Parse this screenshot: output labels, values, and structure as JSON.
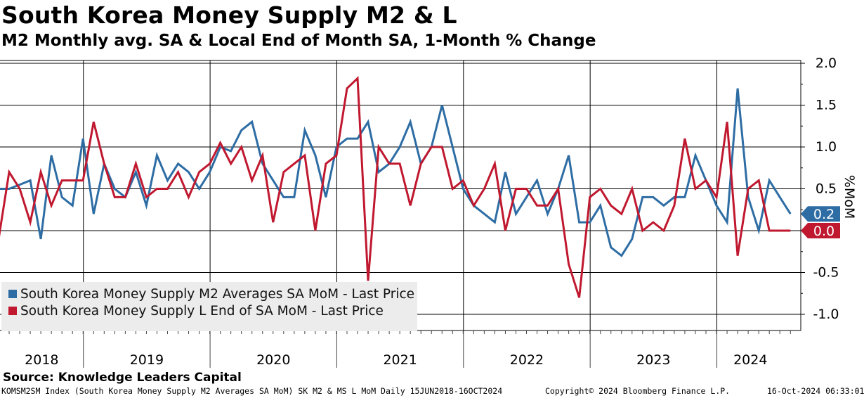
{
  "title": "South Korea Money Supply M2 & L",
  "subtitle": "M2 Monthly avg. SA & Local End of Month SA, 1-Month % Change",
  "source": "Source: Knowledge Leaders Capital",
  "footer": {
    "left": "KOMSM2SM Index (South Korea Money Supply M2 Averages SA MoM) SK M2 & MS L MoM  Daily 15JUN2018-16OCT2024",
    "center": "Copyright© 2024 Bloomberg Finance L.P.",
    "right": "16-Oct-2024 06:33:01"
  },
  "colors": {
    "m2": "#2e6da4",
    "l": "#c0182f",
    "grid": "#000000",
    "legend_bg": "#ececec"
  },
  "chart_data": {
    "type": "line",
    "title": "South Korea Money Supply M2 & L",
    "ylabel": "%MoM",
    "ylim": [
      -1.2,
      2.1
    ],
    "yticks": [
      2.0,
      1.5,
      1.0,
      0.5,
      0.0,
      -0.5,
      -1.0
    ],
    "ytick_labels": [
      "2.0",
      "1.5",
      "1.0",
      "0.5",
      "0",
      "-0.5",
      "-1.0"
    ],
    "x_start": "2018-05",
    "x_labels": [
      "2018",
      "2019",
      "2020",
      "2021",
      "2022",
      "2023",
      "2024"
    ],
    "legend_position": "bottom-left",
    "series": [
      {
        "name": "South Korea Money Supply M2 Averages SA MoM - Last Price",
        "key": "m2",
        "last_value": "0.2",
        "values": [
          0.5,
          0.5,
          0.55,
          0.6,
          -0.1,
          0.9,
          0.4,
          0.3,
          1.1,
          0.2,
          0.8,
          0.5,
          0.4,
          0.7,
          0.3,
          0.9,
          0.6,
          0.8,
          0.7,
          0.5,
          0.7,
          1.0,
          0.95,
          1.2,
          1.3,
          0.8,
          0.6,
          0.4,
          0.4,
          1.2,
          0.9,
          0.4,
          1.0,
          1.1,
          1.1,
          1.3,
          0.7,
          0.8,
          1.0,
          1.3,
          0.8,
          1.0,
          1.5,
          1.0,
          0.5,
          0.3,
          0.2,
          0.1,
          0.7,
          0.2,
          0.4,
          0.6,
          0.2,
          0.5,
          0.9,
          0.1,
          0.1,
          0.3,
          -0.2,
          -0.3,
          -0.1,
          0.4,
          0.4,
          0.3,
          0.4,
          0.4,
          0.9,
          0.6,
          0.3,
          0.1,
          1.7,
          0.4,
          0.0,
          0.6,
          0.4,
          0.2
        ]
      },
      {
        "name": "South Korea Money Supply L End of SA MoM - Last Price",
        "key": "l",
        "last_value": "0.0",
        "values": [
          -0.1,
          0.7,
          0.5,
          0.1,
          0.7,
          0.3,
          0.6,
          0.6,
          0.6,
          1.3,
          0.8,
          0.4,
          0.4,
          0.8,
          0.4,
          0.5,
          0.5,
          0.7,
          0.4,
          0.7,
          0.8,
          1.05,
          0.8,
          1.0,
          0.6,
          0.9,
          0.1,
          0.7,
          0.8,
          0.9,
          0.0,
          0.8,
          0.9,
          1.7,
          1.82,
          -0.6,
          1.0,
          0.8,
          0.8,
          0.3,
          0.8,
          1.0,
          1.0,
          0.5,
          0.6,
          0.3,
          0.5,
          0.8,
          0.0,
          0.5,
          0.5,
          0.3,
          0.3,
          0.5,
          -0.4,
          -0.8,
          0.4,
          0.5,
          0.3,
          0.2,
          0.5,
          0.0,
          0.1,
          0.0,
          0.3,
          1.1,
          0.5,
          0.6,
          0.4,
          1.3,
          -0.3,
          0.5,
          0.6,
          0.0,
          0.0,
          0.0
        ]
      }
    ]
  }
}
